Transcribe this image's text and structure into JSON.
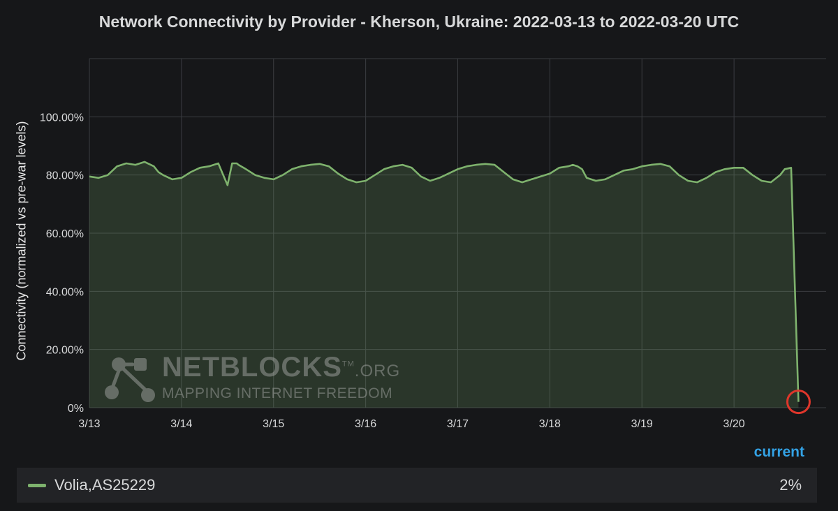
{
  "colors": {
    "background": "#161719",
    "series": "#7eb26d",
    "grid": "#3b3d41",
    "legend_header": "#33a2e5",
    "highlight_circle": "#e0362b"
  },
  "chart_data": {
    "type": "area",
    "title": "Network Connectivity by Provider - Kherson, Ukraine: 2022-03-13 to 2022-03-20 UTC",
    "xlabel": "",
    "ylabel": "Connectivity (normalized vs pre-war levels)",
    "x_tick_labels": [
      "3/13",
      "3/14",
      "3/15",
      "3/16",
      "3/17",
      "3/18",
      "3/19",
      "3/20"
    ],
    "y_tick_labels": [
      "0%",
      "20.00%",
      "40.00%",
      "60.00%",
      "80.00%",
      "100.00%"
    ],
    "y_ticks": [
      0,
      20,
      40,
      60,
      80,
      100
    ],
    "ylim": [
      0,
      120
    ],
    "xlim": [
      0,
      8
    ],
    "grid": true,
    "legend_position": "bottom",
    "series": [
      {
        "name": "Volia,AS25229",
        "x": [
          0,
          0.1,
          0.2,
          0.3,
          0.4,
          0.5,
          0.6,
          0.7,
          0.75,
          0.8,
          0.9,
          1.0,
          1.1,
          1.2,
          1.3,
          1.4,
          1.5,
          1.55,
          1.57,
          1.6,
          1.62,
          1.7,
          1.8,
          1.9,
          2.0,
          2.1,
          2.2,
          2.3,
          2.4,
          2.5,
          2.6,
          2.7,
          2.8,
          2.9,
          3.0,
          3.1,
          3.2,
          3.3,
          3.4,
          3.5,
          3.6,
          3.7,
          3.8,
          3.9,
          4.0,
          4.1,
          4.2,
          4.3,
          4.4,
          4.5,
          4.6,
          4.7,
          4.8,
          4.9,
          5.0,
          5.1,
          5.2,
          5.25,
          5.3,
          5.35,
          5.4,
          5.5,
          5.6,
          5.7,
          5.8,
          5.9,
          6.0,
          6.1,
          6.2,
          6.3,
          6.4,
          6.5,
          6.6,
          6.7,
          6.8,
          6.9,
          7.0,
          7.1,
          7.2,
          7.3,
          7.4,
          7.5,
          7.55,
          7.62,
          7.7
        ],
        "values": [
          79.5,
          79,
          80,
          83,
          84,
          83.5,
          84.5,
          83,
          81,
          80,
          78.5,
          79,
          81,
          82.5,
          83,
          84,
          76.5,
          84,
          84,
          84,
          83.5,
          82,
          80,
          79,
          78.5,
          80,
          82,
          83,
          83.5,
          83.8,
          83,
          80.5,
          78.5,
          77.5,
          78,
          80,
          82,
          83,
          83.5,
          82.5,
          79.5,
          78,
          79,
          80.5,
          82,
          83,
          83.5,
          83.8,
          83.5,
          81,
          78.5,
          77.5,
          78.5,
          79.5,
          80.5,
          82.5,
          83,
          83.5,
          83,
          82,
          79,
          78,
          78.5,
          80,
          81.5,
          82,
          83,
          83.5,
          83.8,
          83,
          80,
          78,
          77.5,
          79,
          81,
          82,
          82.5,
          82.5,
          80,
          78,
          77.5,
          80,
          82,
          82.5,
          2
        ]
      }
    ],
    "annotations": [
      "highlight circle on the final data point (2%)"
    ]
  },
  "watermark": {
    "brand": "NETBLOCKS",
    "tm": "TM",
    "org": ".ORG",
    "tagline": "MAPPING INTERNET FREEDOM"
  },
  "legend": {
    "column_header": "current",
    "rows": [
      {
        "name": "Volia,AS25229",
        "current": "2%"
      }
    ]
  }
}
